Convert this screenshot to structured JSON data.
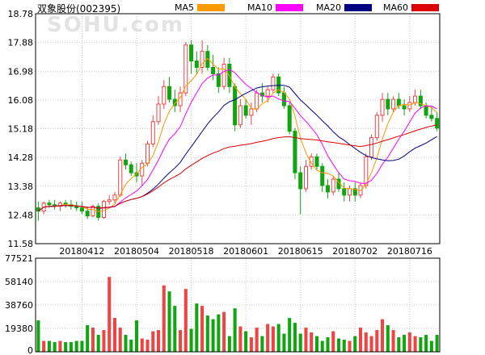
{
  "title": "双象股份(002395)",
  "watermark": "SOHU.com",
  "legend": [
    {
      "name": "MA5",
      "color": "#ff9900"
    },
    {
      "name": "MA10",
      "color": "#ff00ff"
    },
    {
      "name": "MA20",
      "color": "#000080"
    },
    {
      "name": "MA60",
      "color": "#dd0000"
    }
  ],
  "colors": {
    "up": "#ef4444",
    "down": "#11a511",
    "grid": "#c8c8c8",
    "axis": "#000000"
  },
  "chart_data": [
    {
      "type": "candlestick",
      "title": "双象股份(002395)",
      "ylim": [
        11.58,
        18.78
      ],
      "yticks": [
        18.78,
        17.88,
        16.98,
        16.08,
        15.18,
        14.28,
        13.38,
        12.48,
        11.58
      ],
      "xtick_labels": [
        "20180412",
        "20180504",
        "20180518",
        "20180601",
        "20180615",
        "20180702",
        "20180716"
      ],
      "xtick_index": [
        8,
        18,
        28,
        38,
        48,
        58,
        68
      ],
      "ohlc": [
        [
          12.7,
          12.9,
          12.3,
          12.6
        ],
        [
          12.6,
          12.9,
          12.5,
          12.85
        ],
        [
          12.85,
          12.95,
          12.7,
          12.8
        ],
        [
          12.8,
          12.95,
          12.65,
          12.75
        ],
        [
          12.75,
          12.9,
          12.6,
          12.85
        ],
        [
          12.85,
          12.95,
          12.7,
          12.8
        ],
        [
          12.8,
          12.95,
          12.65,
          12.75
        ],
        [
          12.75,
          12.9,
          12.6,
          12.7
        ],
        [
          12.7,
          12.9,
          12.5,
          12.6
        ],
        [
          12.6,
          12.75,
          12.35,
          12.45
        ],
        [
          12.45,
          12.8,
          12.4,
          12.75
        ],
        [
          12.75,
          12.85,
          12.3,
          12.4
        ],
        [
          12.4,
          12.95,
          12.35,
          12.9
        ],
        [
          12.9,
          13.1,
          12.8,
          12.95
        ],
        [
          12.95,
          13.2,
          12.85,
          13.1
        ],
        [
          13.1,
          14.3,
          13.05,
          14.2
        ],
        [
          14.2,
          14.4,
          13.9,
          14.05
        ],
        [
          14.05,
          14.15,
          13.7,
          13.8
        ],
        [
          13.8,
          14.1,
          13.5,
          13.7
        ],
        [
          13.7,
          14.2,
          13.4,
          14.1
        ],
        [
          14.1,
          14.8,
          14.0,
          14.7
        ],
        [
          14.7,
          15.6,
          14.6,
          15.4
        ],
        [
          15.4,
          16.2,
          15.3,
          15.95
        ],
        [
          15.95,
          16.7,
          15.8,
          16.5
        ],
        [
          16.5,
          16.8,
          16.0,
          16.1
        ],
        [
          16.1,
          16.4,
          15.7,
          15.9
        ],
        [
          15.9,
          16.5,
          15.7,
          16.3
        ],
        [
          16.3,
          17.9,
          16.2,
          17.8
        ],
        [
          17.8,
          17.95,
          16.9,
          17.3
        ],
        [
          17.3,
          17.6,
          16.9,
          17.1
        ],
        [
          17.1,
          17.95,
          16.9,
          17.6
        ],
        [
          17.6,
          17.8,
          17.0,
          17.1
        ],
        [
          17.1,
          17.5,
          16.7,
          16.9
        ],
        [
          16.9,
          17.1,
          16.3,
          16.5
        ],
        [
          16.5,
          17.4,
          16.4,
          17.2
        ],
        [
          17.2,
          17.4,
          16.3,
          16.5
        ],
        [
          16.5,
          16.6,
          15.1,
          15.3
        ],
        [
          15.3,
          16.1,
          15.2,
          15.9
        ],
        [
          15.9,
          16.1,
          15.5,
          15.6
        ],
        [
          15.6,
          16.0,
          15.3,
          15.8
        ],
        [
          15.8,
          16.4,
          15.7,
          16.3
        ],
        [
          16.3,
          16.6,
          16.0,
          16.2
        ],
        [
          16.2,
          16.5,
          16.0,
          16.4
        ],
        [
          16.4,
          16.9,
          16.3,
          16.8
        ],
        [
          16.8,
          16.9,
          16.2,
          16.3
        ],
        [
          16.3,
          16.5,
          15.8,
          15.9
        ],
        [
          15.9,
          16.0,
          15.0,
          15.1
        ],
        [
          15.1,
          15.2,
          13.6,
          13.8
        ],
        [
          13.8,
          14.0,
          12.5,
          13.3
        ],
        [
          13.3,
          14.2,
          13.2,
          14.0
        ],
        [
          14.0,
          14.4,
          13.9,
          14.3
        ],
        [
          14.3,
          14.4,
          13.9,
          14.0
        ],
        [
          14.0,
          14.1,
          13.2,
          13.4
        ],
        [
          13.4,
          13.6,
          13.0,
          13.2
        ],
        [
          13.2,
          13.7,
          13.1,
          13.6
        ],
        [
          13.6,
          13.8,
          13.2,
          13.3
        ],
        [
          13.3,
          13.5,
          12.9,
          13.1
        ],
        [
          13.1,
          13.4,
          12.9,
          13.3
        ],
        [
          13.3,
          13.5,
          12.9,
          13.1
        ],
        [
          13.1,
          13.5,
          13.0,
          13.4
        ],
        [
          13.4,
          14.4,
          13.3,
          14.3
        ],
        [
          14.3,
          15.0,
          14.2,
          14.9
        ],
        [
          14.9,
          15.7,
          14.8,
          15.6
        ],
        [
          15.6,
          16.3,
          15.4,
          16.1
        ],
        [
          16.1,
          16.3,
          15.6,
          15.8
        ],
        [
          15.8,
          16.2,
          15.7,
          16.1
        ],
        [
          16.1,
          16.3,
          15.8,
          15.9
        ],
        [
          15.9,
          16.1,
          15.6,
          15.8
        ],
        [
          15.8,
          16.2,
          15.7,
          16.0
        ],
        [
          16.0,
          16.4,
          15.9,
          16.2
        ],
        [
          16.2,
          16.4,
          15.8,
          15.9
        ],
        [
          15.9,
          16.0,
          15.5,
          15.6
        ],
        [
          15.6,
          15.9,
          15.4,
          15.5
        ],
        [
          15.5,
          15.7,
          15.1,
          15.2
        ]
      ],
      "volume": {
        "ylim": [
          0,
          77521
        ],
        "yticks": [
          77521,
          58140,
          38760,
          19380,
          0
        ],
        "values": [
          26000,
          9000,
          9000,
          8000,
          9000,
          8000,
          8000,
          9000,
          9000,
          22000,
          20000,
          14000,
          18000,
          62000,
          28000,
          20000,
          14000,
          10000,
          26000,
          11000,
          10000,
          17000,
          18000,
          55000,
          50000,
          38000,
          18000,
          52000,
          19000,
          40000,
          38000,
          30000,
          27000,
          31000,
          33000,
          13000,
          36000,
          21000,
          17000,
          12000,
          20000,
          13000,
          23000,
          21000,
          23000,
          15000,
          28000,
          24000,
          15000,
          20000,
          16000,
          13000,
          9000,
          12000,
          17000,
          11000,
          10000,
          9000,
          13000,
          20000,
          16000,
          13000,
          18000,
          27000,
          22000,
          18000,
          12000,
          14000,
          16000,
          13000,
          12000,
          14000,
          9000,
          14000
        ]
      },
      "series": [
        {
          "name": "MA5"
        },
        {
          "name": "MA10"
        },
        {
          "name": "MA20"
        },
        {
          "name": "MA60"
        }
      ]
    }
  ]
}
